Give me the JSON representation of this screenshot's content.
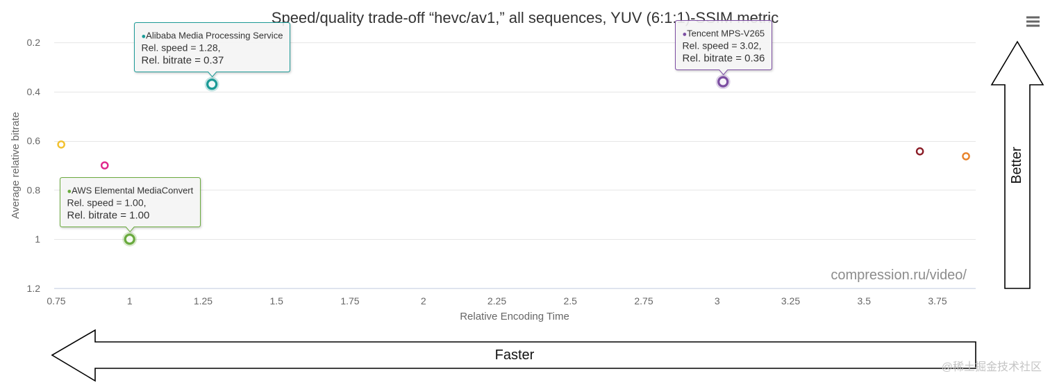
{
  "chart_data": {
    "type": "scatter",
    "title": "Speed/quality trade-off “hevc/av1,” all sequences, YUV (6:1:1)-SSIM metric",
    "xlabel": "Relative Encoding Time",
    "ylabel": "Average relative bitrate",
    "xlim": [
      0.743,
      3.88
    ],
    "ylim": [
      0.2,
      1.2
    ],
    "y_reversed": true,
    "grid": true,
    "x_ticks": [
      0.75,
      1,
      1.25,
      1.5,
      1.75,
      2,
      2.25,
      2.5,
      2.75,
      3,
      3.25,
      3.5,
      3.75
    ],
    "x_tick_labels": [
      "0.75",
      "1",
      "1.25",
      "1.5",
      "1.75",
      "2",
      "2.25",
      "2.5",
      "2.75",
      "3",
      "3.25",
      "3.5",
      "3.75"
    ],
    "y_ticks": [
      0.2,
      0.4,
      0.6,
      0.8,
      1,
      1.2
    ],
    "y_tick_labels": [
      "0.2",
      "0.4",
      "0.6",
      "0.8",
      "1",
      "1.2"
    ],
    "tooltip_marker": "●",
    "series": [
      {
        "color": "#f2c12e",
        "x": 0.767,
        "y": 0.615
      },
      {
        "color": "#e0268c",
        "x": 0.915,
        "y": 0.7
      },
      {
        "name": "AWS Elemental MediaConvert",
        "color": "#6aaa3e",
        "x": 1.0,
        "y": 1.0,
        "tooltip": [
          "Rel. speed = 1.00,",
          "Rel. bitrate = 1.00"
        ]
      },
      {
        "name": "Alibaba Media Processing Service",
        "color": "#1a9a96",
        "x": 1.28,
        "y": 0.37,
        "tooltip": [
          "Rel. speed = 1.28,",
          "Rel. bitrate = 0.37"
        ]
      },
      {
        "name": "Tencent MPS-V265",
        "color": "#7c4ea2",
        "x": 3.02,
        "y": 0.36,
        "tooltip": [
          "Rel. speed = 3.02,",
          "Rel. bitrate = 0.36"
        ]
      },
      {
        "color": "#8a1c26",
        "x": 3.69,
        "y": 0.643
      },
      {
        "color": "#e8822a",
        "x": 3.847,
        "y": 0.663
      }
    ],
    "watermark": "compression.ru/video/"
  },
  "toolbar": {
    "menu_icon": "hamburger-menu-icon"
  },
  "annotations": {
    "better_label": "Better",
    "faster_label": "Faster"
  },
  "source_watermark": "@稀土掘金技术社区"
}
